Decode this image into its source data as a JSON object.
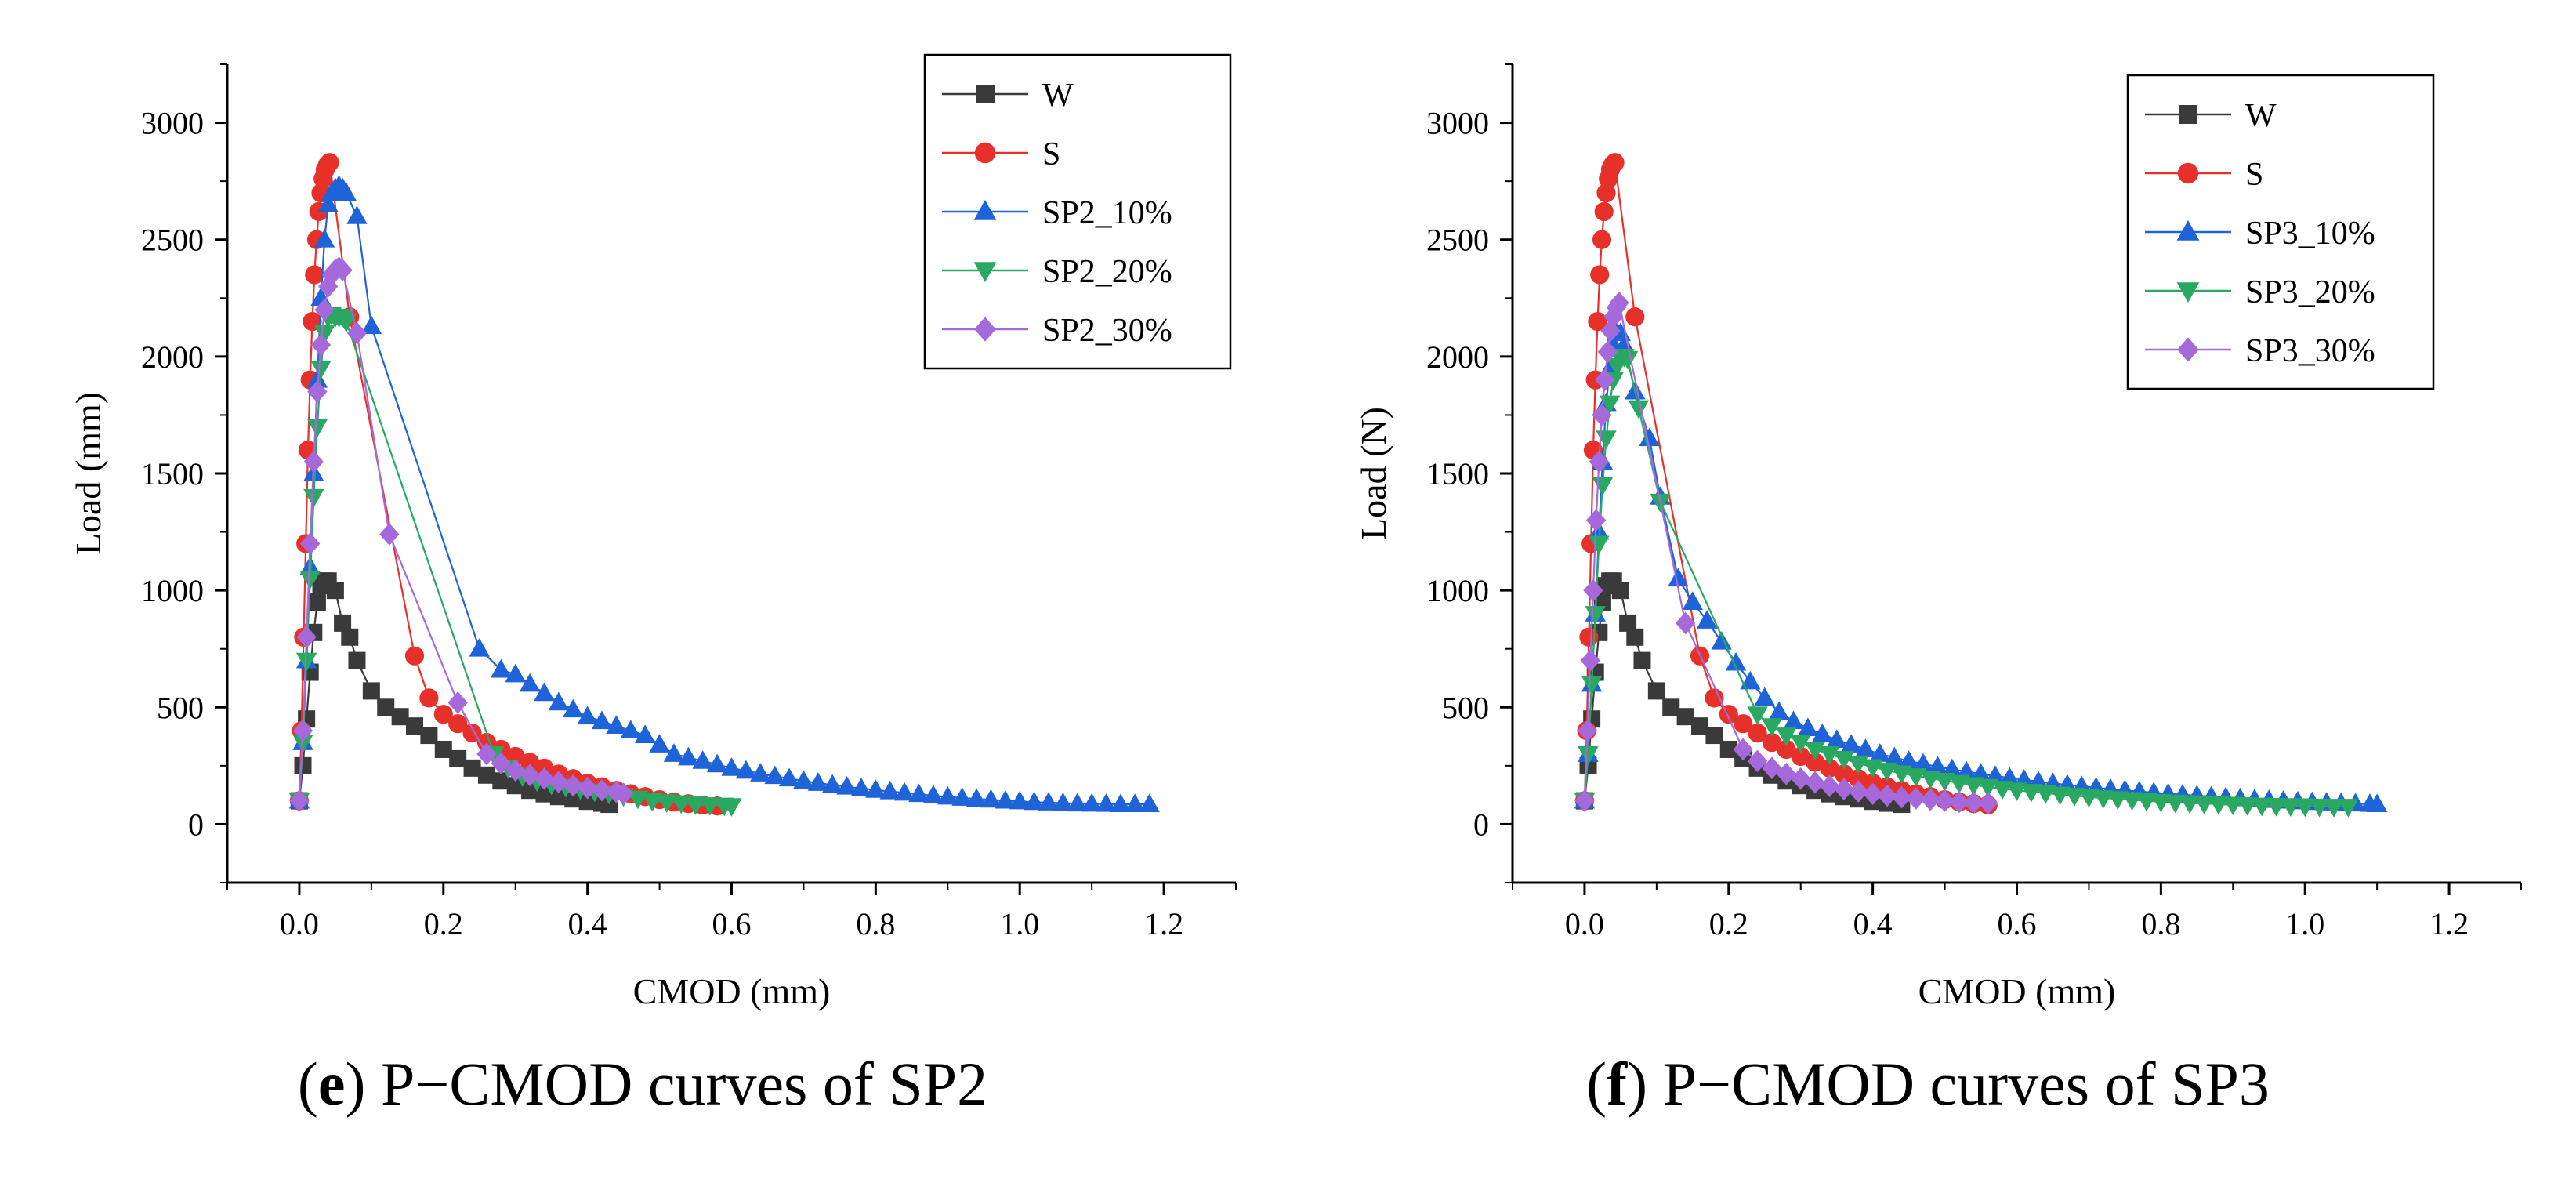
{
  "chart_data": [
    {
      "type": "line",
      "panel": "e",
      "caption_letter": "e",
      "caption_text": "P−CMOD curves of SP2",
      "xlabel": "CMOD (mm)",
      "ylabel": "Load (mm)",
      "xlim": [
        -0.1,
        1.3
      ],
      "ylim": [
        -250,
        3250
      ],
      "xticks": [
        0.0,
        0.2,
        0.4,
        0.6,
        0.8,
        1.0,
        1.2
      ],
      "xtick_labels": [
        "0.0",
        "0.2",
        "0.4",
        "0.6",
        "0.8",
        "1.0",
        "1.2"
      ],
      "yticks": [
        0,
        500,
        1000,
        1500,
        2000,
        2500,
        3000
      ],
      "ytick_labels": [
        "0",
        "500",
        "1000",
        "1500",
        "2000",
        "2500",
        "3000"
      ],
      "grid": false,
      "legend_position": "top-right",
      "series": [
        {
          "name": "W",
          "color": "#3a3a3a",
          "marker": "square",
          "x": [
            0.0,
            0.005,
            0.01,
            0.015,
            0.02,
            0.025,
            0.03,
            0.035,
            0.04,
            0.05,
            0.06,
            0.07,
            0.08,
            0.1,
            0.12,
            0.14,
            0.16,
            0.18,
            0.2,
            0.22,
            0.24,
            0.26,
            0.28,
            0.3,
            0.32,
            0.34,
            0.36,
            0.38,
            0.4,
            0.42,
            0.43
          ],
          "y": [
            100,
            250,
            450,
            650,
            820,
            950,
            1020,
            1040,
            1040,
            1000,
            860,
            800,
            700,
            570,
            500,
            460,
            420,
            380,
            320,
            280,
            240,
            210,
            185,
            165,
            145,
            130,
            118,
            108,
            98,
            90,
            85
          ]
        },
        {
          "name": "S",
          "color": "#e8302b",
          "marker": "circle",
          "x": [
            0.0,
            0.003,
            0.006,
            0.009,
            0.012,
            0.015,
            0.018,
            0.021,
            0.024,
            0.027,
            0.03,
            0.033,
            0.036,
            0.039,
            0.042,
            0.07,
            0.16,
            0.18,
            0.2,
            0.22,
            0.24,
            0.26,
            0.28,
            0.3,
            0.32,
            0.34,
            0.36,
            0.38,
            0.4,
            0.42,
            0.44,
            0.46,
            0.48,
            0.5,
            0.52,
            0.54,
            0.56,
            0.58
          ],
          "y": [
            100,
            400,
            800,
            1200,
            1600,
            1900,
            2150,
            2350,
            2500,
            2620,
            2700,
            2760,
            2800,
            2820,
            2830,
            2170,
            720,
            540,
            470,
            430,
            390,
            350,
            320,
            290,
            265,
            240,
            215,
            195,
            175,
            160,
            145,
            130,
            118,
            105,
            95,
            88,
            82,
            78
          ]
        },
        {
          "name": "SP2_10%",
          "color": "#1f63d8",
          "marker": "triangle-up",
          "x": [
            0.0,
            0.005,
            0.01,
            0.015,
            0.02,
            0.025,
            0.03,
            0.035,
            0.04,
            0.045,
            0.05,
            0.055,
            0.06,
            0.065,
            0.08,
            0.1,
            0.25,
            0.28,
            0.3,
            0.32,
            0.34,
            0.36,
            0.38,
            0.4,
            0.42,
            0.44,
            0.46,
            0.48,
            0.5,
            0.52,
            0.54,
            0.56,
            0.58,
            0.6,
            0.62,
            0.64,
            0.66,
            0.68,
            0.7,
            0.72,
            0.74,
            0.76,
            0.78,
            0.8,
            0.82,
            0.84,
            0.86,
            0.88,
            0.9,
            0.92,
            0.94,
            0.96,
            0.98,
            1.0,
            1.02,
            1.04,
            1.06,
            1.08,
            1.1,
            1.12,
            1.14,
            1.16,
            1.18
          ],
          "y": [
            100,
            350,
            700,
            1100,
            1500,
            1900,
            2250,
            2500,
            2650,
            2700,
            2720,
            2730,
            2720,
            2700,
            2600,
            2130,
            750,
            660,
            640,
            600,
            560,
            520,
            490,
            460,
            440,
            420,
            400,
            380,
            340,
            300,
            285,
            270,
            255,
            240,
            228,
            216,
            205,
            195,
            185,
            176,
            168,
            160,
            153,
            146,
            140,
            134,
            128,
            122,
            117,
            112,
            108,
            104,
            100,
            97,
            94,
            92,
            90,
            88,
            87,
            86,
            85,
            85,
            85
          ]
        },
        {
          "name": "SP2_20%",
          "color": "#28a860",
          "marker": "triangle-down",
          "x": [
            0.0,
            0.005,
            0.01,
            0.015,
            0.02,
            0.025,
            0.03,
            0.035,
            0.04,
            0.045,
            0.05,
            0.055,
            0.06,
            0.065,
            0.27,
            0.29,
            0.31,
            0.33,
            0.35,
            0.37,
            0.39,
            0.41,
            0.43,
            0.45,
            0.47,
            0.49,
            0.51,
            0.53,
            0.55,
            0.57,
            0.59,
            0.6
          ],
          "y": [
            100,
            350,
            700,
            1050,
            1400,
            1700,
            1950,
            2100,
            2170,
            2180,
            2170,
            2170,
            2170,
            2150,
            300,
            240,
            205,
            185,
            170,
            160,
            150,
            140,
            130,
            120,
            110,
            100,
            95,
            90,
            85,
            82,
            80,
            78
          ]
        },
        {
          "name": "SP2_30%",
          "color": "#a569dc",
          "marker": "diamond",
          "x": [
            0.0,
            0.005,
            0.01,
            0.015,
            0.02,
            0.025,
            0.03,
            0.035,
            0.04,
            0.045,
            0.05,
            0.055,
            0.06,
            0.08,
            0.125,
            0.22,
            0.26,
            0.28,
            0.3,
            0.32,
            0.34,
            0.36,
            0.38,
            0.4,
            0.42,
            0.44,
            0.45
          ],
          "y": [
            100,
            400,
            800,
            1200,
            1550,
            1850,
            2050,
            2200,
            2300,
            2350,
            2370,
            2380,
            2370,
            2100,
            1240,
            520,
            300,
            260,
            230,
            210,
            195,
            180,
            165,
            155,
            145,
            138,
            130
          ]
        }
      ]
    },
    {
      "type": "line",
      "panel": "f",
      "caption_letter": "f",
      "caption_text": "P−CMOD curves of SP3",
      "xlabel": "CMOD (mm)",
      "ylabel": "Load (N)",
      "xlim": [
        -0.1,
        1.3
      ],
      "ylim": [
        -250,
        3250
      ],
      "xticks": [
        0.0,
        0.2,
        0.4,
        0.6,
        0.8,
        1.0,
        1.2
      ],
      "xtick_labels": [
        "0.0",
        "0.2",
        "0.4",
        "0.6",
        "0.8",
        "1.0",
        "1.2"
      ],
      "yticks": [
        0,
        500,
        1000,
        1500,
        2000,
        2500,
        3000
      ],
      "ytick_labels": [
        "0",
        "500",
        "1000",
        "1500",
        "2000",
        "2500",
        "3000"
      ],
      "grid": false,
      "legend_position": "top-right",
      "series": [
        {
          "name": "W",
          "color": "#3a3a3a",
          "marker": "square",
          "x": [
            0.0,
            0.005,
            0.01,
            0.015,
            0.02,
            0.025,
            0.03,
            0.035,
            0.04,
            0.05,
            0.06,
            0.07,
            0.08,
            0.1,
            0.12,
            0.14,
            0.16,
            0.18,
            0.2,
            0.22,
            0.24,
            0.26,
            0.28,
            0.3,
            0.32,
            0.34,
            0.36,
            0.38,
            0.4,
            0.42,
            0.44
          ],
          "y": [
            100,
            250,
            450,
            650,
            820,
            950,
            1020,
            1040,
            1040,
            1000,
            860,
            800,
            700,
            570,
            500,
            460,
            420,
            380,
            320,
            280,
            240,
            210,
            185,
            165,
            145,
            130,
            118,
            108,
            98,
            90,
            85
          ]
        },
        {
          "name": "S",
          "color": "#e8302b",
          "marker": "circle",
          "x": [
            0.0,
            0.003,
            0.006,
            0.009,
            0.012,
            0.015,
            0.018,
            0.021,
            0.024,
            0.027,
            0.03,
            0.033,
            0.036,
            0.039,
            0.042,
            0.07,
            0.16,
            0.18,
            0.2,
            0.22,
            0.24,
            0.26,
            0.28,
            0.3,
            0.32,
            0.34,
            0.36,
            0.38,
            0.4,
            0.42,
            0.44,
            0.46,
            0.48,
            0.5,
            0.52,
            0.54,
            0.56
          ],
          "y": [
            100,
            400,
            800,
            1200,
            1600,
            1900,
            2150,
            2350,
            2500,
            2620,
            2700,
            2760,
            2800,
            2820,
            2830,
            2170,
            720,
            540,
            470,
            430,
            390,
            350,
            320,
            290,
            265,
            240,
            215,
            195,
            175,
            160,
            145,
            130,
            118,
            105,
            95,
            88,
            82
          ]
        },
        {
          "name": "SP3_10%",
          "color": "#1f63d8",
          "marker": "triangle-up",
          "x": [
            0.0,
            0.005,
            0.01,
            0.015,
            0.02,
            0.025,
            0.03,
            0.035,
            0.04,
            0.045,
            0.05,
            0.055,
            0.07,
            0.09,
            0.105,
            0.13,
            0.15,
            0.17,
            0.19,
            0.21,
            0.23,
            0.25,
            0.27,
            0.29,
            0.31,
            0.33,
            0.35,
            0.37,
            0.39,
            0.41,
            0.43,
            0.45,
            0.47,
            0.49,
            0.51,
            0.53,
            0.55,
            0.57,
            0.59,
            0.61,
            0.63,
            0.65,
            0.67,
            0.69,
            0.71,
            0.73,
            0.75,
            0.77,
            0.79,
            0.81,
            0.83,
            0.85,
            0.87,
            0.89,
            0.91,
            0.93,
            0.95,
            0.97,
            0.99,
            1.01,
            1.03,
            1.05,
            1.07,
            1.09,
            1.1
          ],
          "y": [
            100,
            300,
            600,
            900,
            1250,
            1550,
            1800,
            1950,
            2050,
            2100,
            2100,
            2050,
            1850,
            1650,
            1400,
            1050,
            950,
            870,
            780,
            690,
            610,
            540,
            480,
            440,
            410,
            385,
            360,
            340,
            320,
            300,
            285,
            270,
            258,
            246,
            235,
            225,
            215,
            206,
            198,
            190,
            182,
            175,
            168,
            162,
            156,
            150,
            145,
            140,
            135,
            130,
            126,
            122,
            118,
            114,
            110,
            106,
            103,
            100,
            97,
            94,
            92,
            90,
            88,
            86,
            85
          ]
        },
        {
          "name": "SP3_20%",
          "color": "#28a860",
          "marker": "triangle-down",
          "x": [
            0.0,
            0.005,
            0.01,
            0.015,
            0.02,
            0.025,
            0.03,
            0.035,
            0.04,
            0.045,
            0.05,
            0.055,
            0.06,
            0.075,
            0.105,
            0.24,
            0.26,
            0.28,
            0.3,
            0.32,
            0.34,
            0.36,
            0.38,
            0.4,
            0.42,
            0.44,
            0.46,
            0.48,
            0.5,
            0.52,
            0.54,
            0.56,
            0.58,
            0.6,
            0.62,
            0.64,
            0.66,
            0.68,
            0.7,
            0.72,
            0.74,
            0.76,
            0.78,
            0.8,
            0.82,
            0.84,
            0.86,
            0.88,
            0.9,
            0.92,
            0.94,
            0.96,
            0.98,
            1.0,
            1.02,
            1.04,
            1.06
          ],
          "y": [
            100,
            300,
            600,
            900,
            1200,
            1450,
            1650,
            1800,
            1900,
            1960,
            1990,
            2000,
            1990,
            1780,
            1380,
            470,
            420,
            380,
            350,
            320,
            300,
            280,
            260,
            245,
            230,
            218,
            206,
            196,
            186,
            177,
            168,
            160,
            152,
            145,
            139,
            133,
            127,
            122,
            117,
            112,
            108,
            104,
            100,
            96,
            93,
            90,
            88,
            86,
            84,
            82,
            80,
            79,
            78,
            77,
            76,
            75,
            75
          ]
        },
        {
          "name": "SP3_30%",
          "color": "#a569dc",
          "marker": "diamond",
          "x": [
            0.0,
            0.004,
            0.008,
            0.012,
            0.016,
            0.02,
            0.024,
            0.028,
            0.032,
            0.036,
            0.04,
            0.044,
            0.048,
            0.14,
            0.22,
            0.24,
            0.26,
            0.28,
            0.3,
            0.32,
            0.34,
            0.36,
            0.38,
            0.4,
            0.42,
            0.44,
            0.46,
            0.48,
            0.5,
            0.52,
            0.54,
            0.56
          ],
          "y": [
            100,
            400,
            700,
            1000,
            1300,
            1550,
            1750,
            1900,
            2020,
            2110,
            2170,
            2210,
            2230,
            860,
            320,
            270,
            240,
            215,
            195,
            178,
            163,
            150,
            140,
            130,
            122,
            115,
            110,
            105,
            100,
            95,
            92,
            90
          ]
        }
      ]
    }
  ]
}
